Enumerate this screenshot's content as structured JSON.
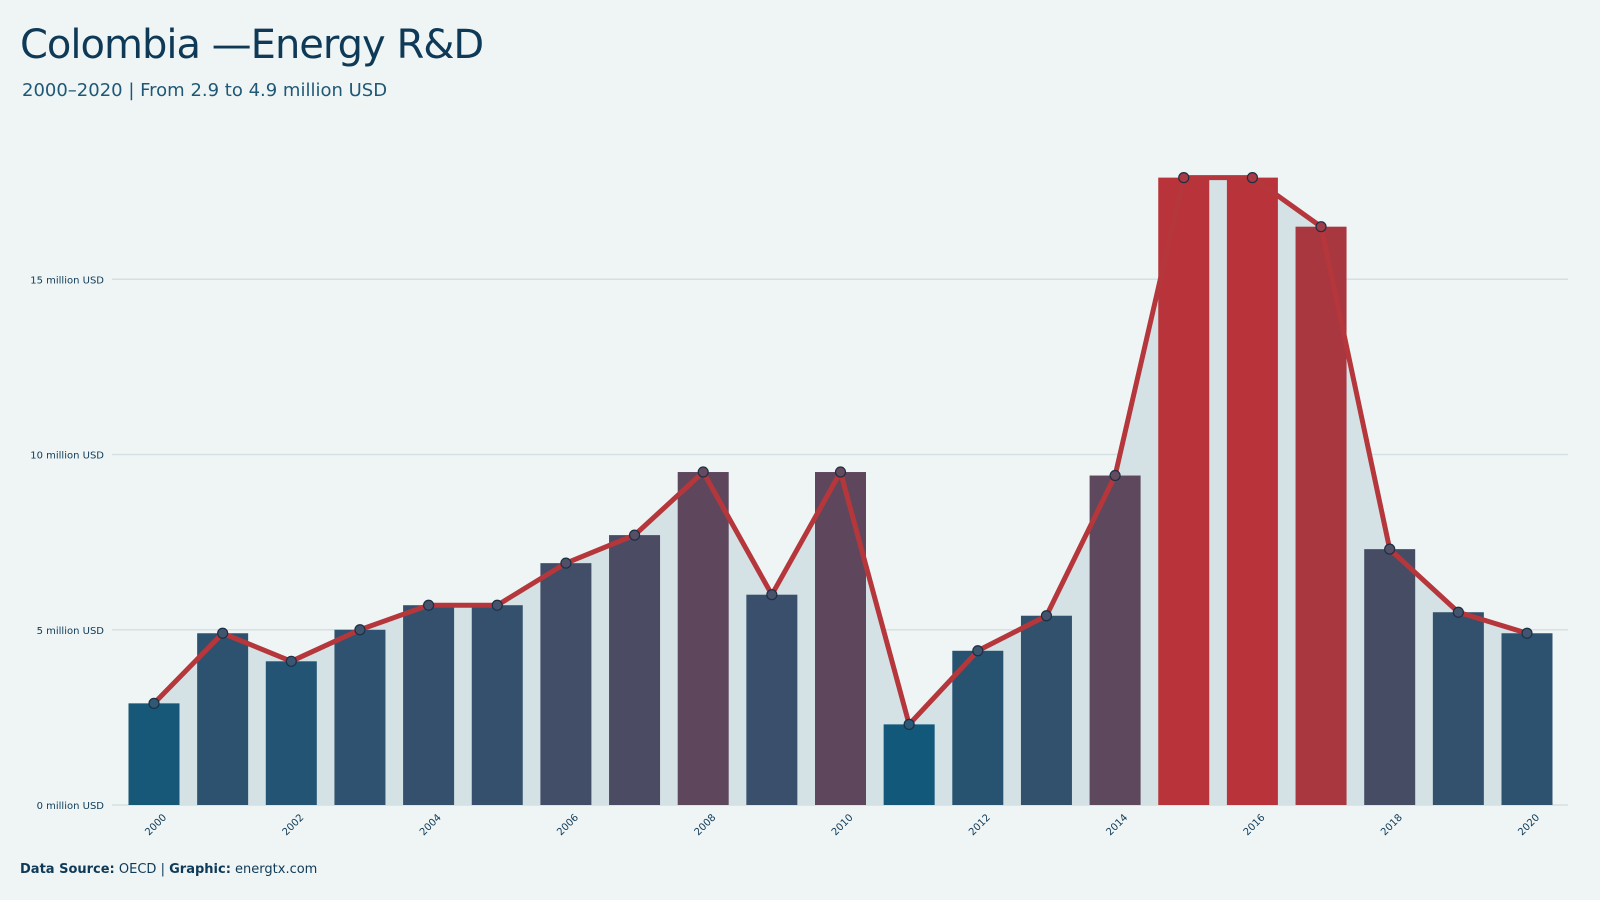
{
  "header": {
    "title": "Colombia —Energy R&D",
    "subtitle": "2000–2020 | From 2.9 to 4.9 million  USD"
  },
  "footer": {
    "source_label": "Data  Source:",
    "source_value": "OECD",
    "separator": "|",
    "graphic_label": "Graphic:",
    "graphic_value": "energtx.com"
  },
  "colors": {
    "background": "#eff5f5",
    "line": "#b5373b",
    "area": "#d5e2e5",
    "gridline": "#d4e0e2",
    "low": "#11587a",
    "high": "#b8343a"
  },
  "chart_data": {
    "type": "bar",
    "x": [
      2000,
      2001,
      2002,
      2003,
      2004,
      2005,
      2006,
      2007,
      2008,
      2009,
      2010,
      2011,
      2012,
      2013,
      2014,
      2015,
      2016,
      2017,
      2018,
      2019,
      2020
    ],
    "values": [
      2.9,
      4.9,
      4.1,
      5.0,
      5.7,
      5.7,
      6.9,
      7.7,
      9.5,
      6.0,
      9.5,
      2.3,
      4.4,
      5.4,
      9.4,
      17.9,
      17.9,
      16.5,
      7.3,
      5.5,
      4.9
    ],
    "overlay": "line with markers and shaded area",
    "x_tick_labels": [
      "2000",
      "2002",
      "2004",
      "2006",
      "2008",
      "2010",
      "2012",
      "2014",
      "2016",
      "2018",
      "2020"
    ],
    "y_ticks": [
      0,
      5,
      10,
      15
    ],
    "y_tick_labels": [
      "0 million USD",
      "5 million USD",
      "10 million USD",
      "15 million USD"
    ],
    "ylim": [
      0,
      20
    ],
    "xlabel": "",
    "ylabel": "",
    "grid": "horizontal"
  }
}
